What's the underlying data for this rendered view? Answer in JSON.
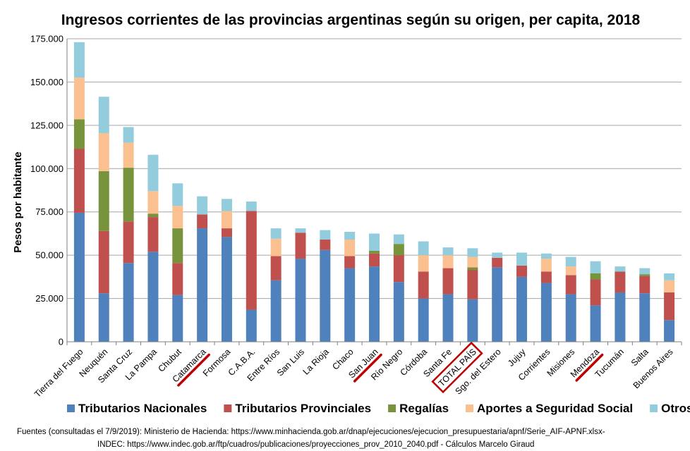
{
  "chart_data": {
    "type": "bar",
    "stacked": true,
    "title": "Ingresos corrientes de las provincias argentinas según su origen, per capita, 2018",
    "ylabel": "Pesos por habitante",
    "xlabel": "",
    "ylim": [
      0,
      175000
    ],
    "yticks": [
      0,
      25000,
      50000,
      75000,
      100000,
      125000,
      150000,
      175000
    ],
    "ytick_labels": [
      "0",
      "25.000",
      "50.000",
      "75.000",
      "100.000",
      "125.000",
      "150.000",
      "175.000"
    ],
    "grid": true,
    "legend_position": "bottom",
    "categories": [
      "Tierra del Fuego",
      "Neuquén",
      "Santa Cruz",
      "La Pampa",
      "Chubut",
      "Catamarca",
      "Formosa",
      "C.A.B.A.",
      "Entre Ríos",
      "San Luis",
      "La Rioja",
      "Chaco",
      "San Juan",
      "Río Negro",
      "Córdoba",
      "Santa Fe",
      "TOTAL PAÍS",
      "Sgo. del Estero",
      "Jujuy",
      "Corrientes",
      "Misiones",
      "Mendoza",
      "Tucumán",
      "Salta",
      "Buenos Aires"
    ],
    "highlighted_underlined": [
      "Catamarca",
      "San Juan",
      "Mendoza"
    ],
    "highlighted_boxed": [
      "TOTAL PAÍS"
    ],
    "highlight_color": "#c00000",
    "series": [
      {
        "name": "Tributarios Nacionales",
        "color": "#4f81bd",
        "values": [
          74500,
          28000,
          45500,
          52000,
          27000,
          65500,
          60500,
          18500,
          35500,
          48000,
          53000,
          42500,
          43500,
          34500,
          25000,
          27500,
          24500,
          43000,
          37500,
          34000,
          27500,
          21000,
          28500,
          28000,
          12500
        ]
      },
      {
        "name": "Tributarios Provinciales",
        "color": "#c0504d",
        "values": [
          37000,
          36000,
          24000,
          20000,
          18500,
          8000,
          5000,
          57000,
          14000,
          15000,
          6000,
          7000,
          7500,
          15500,
          15500,
          15000,
          17000,
          5500,
          6500,
          6500,
          11000,
          15000,
          12000,
          10000,
          16000
        ]
      },
      {
        "name": "Regalías",
        "color": "#77933c",
        "values": [
          17000,
          34500,
          31000,
          2000,
          20000,
          0,
          0,
          0,
          0,
          0,
          0,
          0,
          1500,
          6500,
          0,
          0,
          1500,
          0,
          0,
          0,
          0,
          3500,
          0,
          1000,
          0
        ]
      },
      {
        "name": "Aportes a Seguridad Social",
        "color": "#fac090",
        "values": [
          24000,
          22000,
          14500,
          13000,
          13000,
          0,
          10000,
          0,
          10000,
          0,
          0,
          9500,
          0,
          0,
          9500,
          7500,
          6000,
          0,
          0,
          7500,
          5000,
          0,
          0,
          0,
          7000
        ]
      },
      {
        "name": "Otros",
        "color": "#93cddd",
        "values": [
          20500,
          21000,
          9000,
          21000,
          13000,
          10500,
          7000,
          5500,
          6000,
          2500,
          5500,
          4500,
          10000,
          5500,
          8000,
          4500,
          5000,
          3000,
          7500,
          3000,
          5500,
          7000,
          3000,
          3500,
          4000
        ]
      }
    ],
    "footer_line1": "Fuentes (consultadas el 7/9/2019): Ministerio de Hacienda: https://www.minhacienda.gob.ar/dnap/ejecuciones/ejecucion_presupuestaria/apnf/Serie_AIF-APNF.xlsx-",
    "footer_line2": "INDEC: https://www.indec.gob.ar/ftp/cuadros/publicaciones/proyecciones_prov_2010_2040.pdf  - Cálculos Marcelo Giraud"
  }
}
